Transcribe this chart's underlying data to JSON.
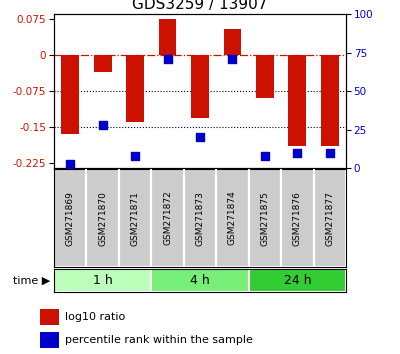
{
  "title": "GDS3259 / 13907",
  "samples": [
    "GSM271869",
    "GSM271870",
    "GSM271871",
    "GSM271872",
    "GSM271873",
    "GSM271874",
    "GSM271875",
    "GSM271876",
    "GSM271877"
  ],
  "log10_ratio": [
    -0.165,
    -0.035,
    -0.14,
    0.075,
    -0.13,
    0.055,
    -0.09,
    -0.19,
    -0.19
  ],
  "percentile_rank": [
    3,
    28,
    8,
    71,
    20,
    71,
    8,
    10,
    10
  ],
  "groups": [
    {
      "label": "1 h",
      "indices": [
        0,
        1,
        2
      ],
      "color": "#bbffbb"
    },
    {
      "label": "4 h",
      "indices": [
        3,
        4,
        5
      ],
      "color": "#77ee77"
    },
    {
      "label": "24 h",
      "indices": [
        6,
        7,
        8
      ],
      "color": "#33cc33"
    }
  ],
  "ylim_left": [
    -0.235,
    0.085
  ],
  "ylim_right": [
    0,
    100
  ],
  "yticks_left": [
    0.075,
    0,
    -0.075,
    -0.15,
    -0.225
  ],
  "yticks_right": [
    100,
    75,
    50,
    25,
    0
  ],
  "hline_zero": 0,
  "hlines_dotted": [
    -0.075,
    -0.15
  ],
  "bar_color": "#cc1100",
  "dot_color": "#0000cc",
  "bar_width": 0.55,
  "dot_size": 35,
  "time_label": "time",
  "legend_bar_label": "log10 ratio",
  "legend_dot_label": "percentile rank within the sample",
  "title_fontsize": 11,
  "axis_label_color_left": "#cc1100",
  "axis_label_color_right": "#0000cc",
  "sample_box_color": "#cccccc",
  "sample_label_fontsize": 6.5,
  "group_label_fontsize": 9,
  "legend_fontsize": 8,
  "time_fontsize": 8
}
